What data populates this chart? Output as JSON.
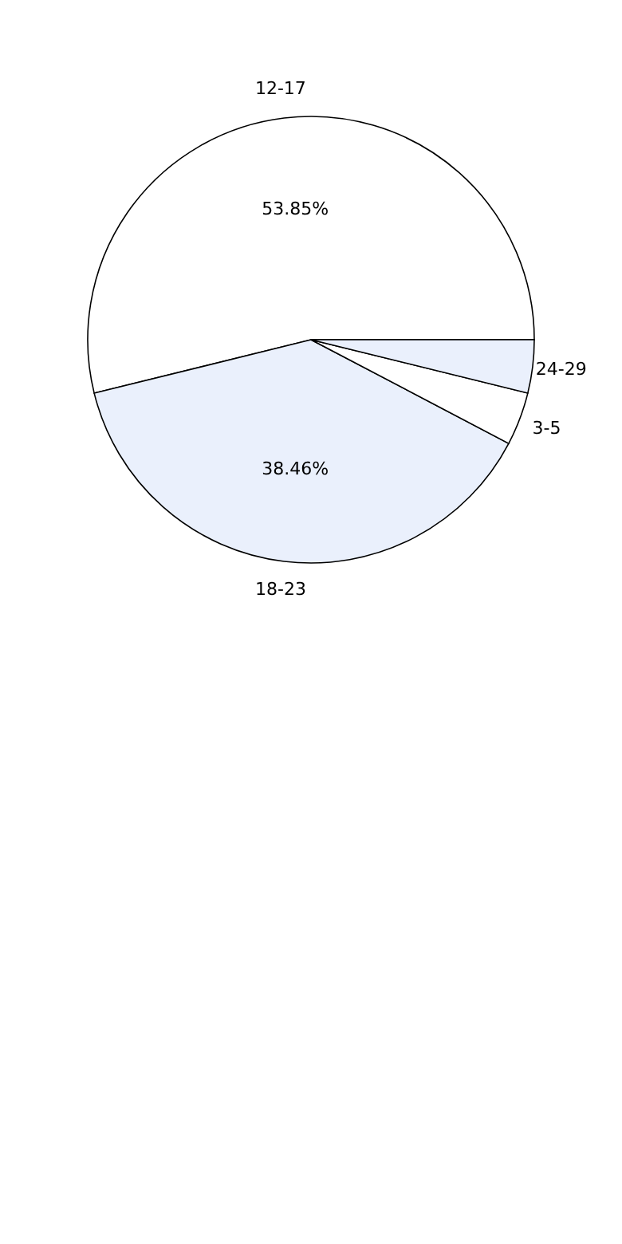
{
  "chart_data": {
    "type": "pie",
    "categories": [
      "12-17",
      "18-23",
      "3-5",
      "24-29"
    ],
    "values": [
      53.85,
      38.46,
      3.85,
      3.84
    ],
    "colors": [
      "#ffffff",
      "#eaf0fc",
      "#ffffff",
      "#eaf0fc"
    ],
    "value_labels": [
      "53.85%",
      "38.46%",
      null,
      null
    ],
    "legend": false
  }
}
